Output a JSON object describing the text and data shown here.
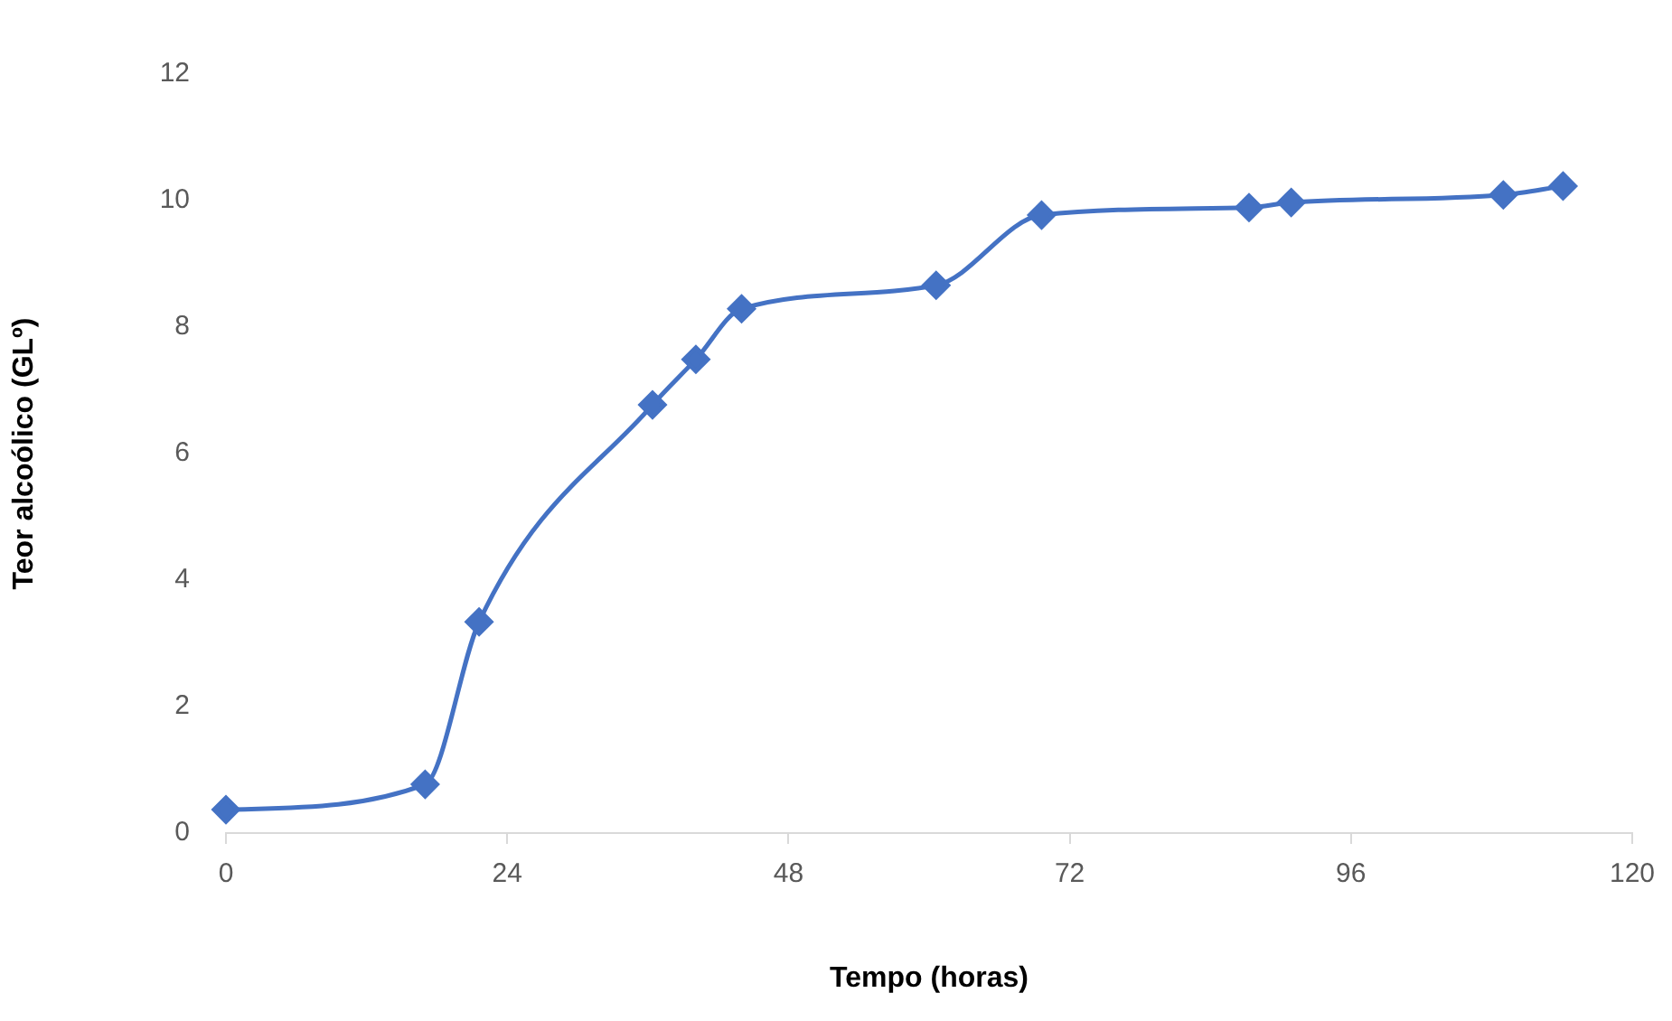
{
  "chart_data": {
    "type": "line",
    "xlabel": "Tempo (horas)",
    "ylabel": "Teor alcoólico (GLº)",
    "x": [
      0,
      17,
      21.6,
      36.4,
      40.1,
      44,
      60.6,
      69.6,
      87.3,
      90.9,
      109,
      114.1
    ],
    "series": [
      {
        "color": "#4472c4",
        "values": [
          0.37,
          0.77,
          3.34,
          6.77,
          7.49,
          8.29,
          8.66,
          9.77,
          9.89,
          9.97,
          10.09,
          10.23
        ]
      }
    ],
    "xlim": [
      0,
      120
    ],
    "xticks": [
      0,
      24,
      48,
      72,
      96,
      120
    ],
    "ylim": [
      0,
      12
    ],
    "yticks": [
      0,
      2,
      4,
      6,
      8,
      10,
      12
    ],
    "marker": "diamond",
    "line_style": "solid",
    "grid": false,
    "legend": false
  }
}
